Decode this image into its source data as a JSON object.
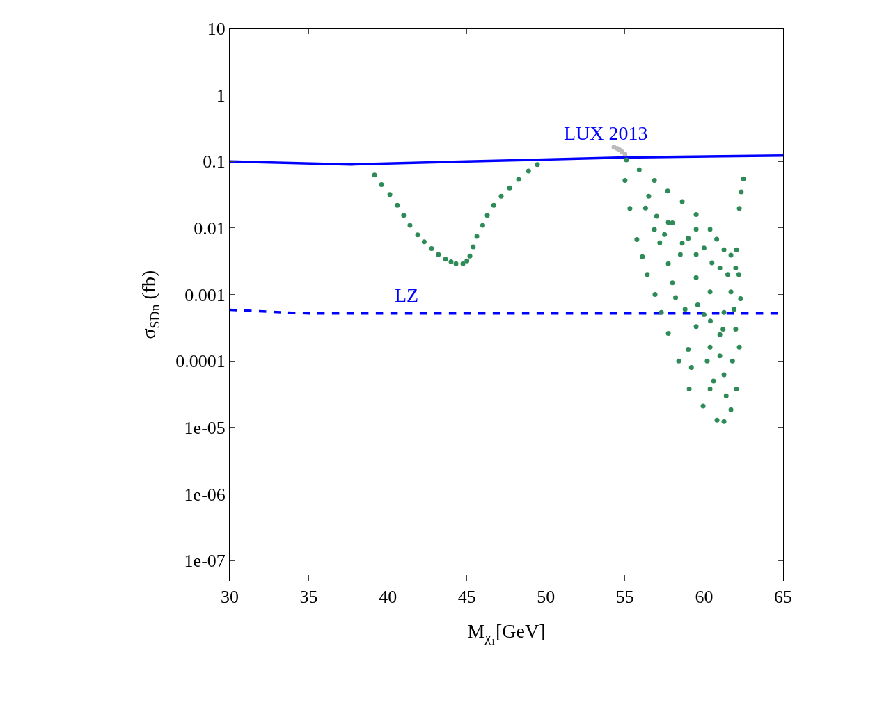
{
  "chart_data": {
    "type": "scatter",
    "xlabel": "M$_{χ₁}$[GeV]",
    "ylabel": "σ$_{SDn}$ (fb)",
    "log": "y",
    "xlim": [
      30,
      65
    ],
    "xticks": [
      30,
      35,
      40,
      45,
      50,
      55,
      60,
      65
    ],
    "ylim": [
      5e-08,
      10
    ],
    "yticks": [
      10,
      1,
      0.1,
      0.01,
      0.001,
      0.0001,
      {
        "value": 1e-05,
        "label": "1e-05"
      },
      {
        "value": 1e-06,
        "label": "1e-06"
      },
      {
        "value": 1e-07,
        "label": "1e-07"
      }
    ],
    "annotations": [
      "LUX 2013",
      "LZ"
    ],
    "series": [
      {
        "type": "line",
        "line_style": "solid",
        "color": "#0000ff",
        "x": [
          30,
          37.7,
          45,
          55,
          65
        ],
        "values": [
          0.1,
          0.09,
          0.1,
          0.115,
          0.123
        ]
      },
      {
        "type": "line",
        "line_style": "dashed",
        "color": "#0000ff",
        "x": [
          30,
          35,
          45,
          55,
          65
        ],
        "values": [
          0.00059,
          0.00052,
          0.00052,
          0.00052,
          0.00052
        ]
      },
      {
        "marker": "circle",
        "color": "#bbbbbb",
        "x": [
          54.3,
          54.5,
          54.65,
          54.8,
          55.0
        ],
        "values": [
          0.164,
          0.157,
          0.15,
          0.14,
          0.129
        ]
      },
      {
        "marker": "circle",
        "color": "#2e8b57",
        "x": [
          39.16,
          39.6,
          40.13,
          40.6,
          41.0,
          41.4,
          41.89,
          42.3,
          42.77,
          43.2,
          43.65,
          44.0,
          44.31,
          44.75,
          45.0,
          45.19,
          45.4,
          45.63,
          46.0,
          46.29,
          46.7,
          47.17,
          47.7,
          48.27,
          48.9,
          49.46,
          55.09,
          55.9,
          56.86,
          57.7,
          58.62,
          59.5,
          60.38,
          60.8,
          61.26,
          61.7,
          62.05,
          62.23,
          62.35,
          62.49,
          55.0,
          55.31,
          55.75,
          56.1,
          56.41,
          56.9,
          57.3,
          57.74,
          58.4,
          59.06,
          59.94,
          60.82,
          61.26,
          61.7,
          62.05,
          62.23,
          62.31,
          56.86,
          57.74,
          58.62,
          59.5,
          59.5,
          60.38,
          60.38,
          61.26,
          61.26,
          60.38,
          61.7,
          57.74,
          59.5,
          58.2,
          59.0,
          60.0,
          61.0,
          62.0,
          62.2,
          56.3,
          57.2,
          56.5,
          57.0,
          57.5,
          58.0,
          58.5,
          59.0,
          59.5,
          60.0,
          60.5,
          61.0,
          61.5,
          62.0,
          58.0,
          58.8,
          59.6,
          60.4,
          61.2,
          61.9,
          59.2,
          60.2,
          61.0,
          61.8,
          60.6,
          61.4
        ],
        "values": [
          0.0625,
          0.045,
          0.032,
          0.022,
          0.0155,
          0.011,
          0.0079,
          0.0062,
          0.0049,
          0.004,
          0.0034,
          0.0031,
          0.0029,
          0.0029,
          0.0032,
          0.0038,
          0.0052,
          0.0075,
          0.011,
          0.0155,
          0.022,
          0.03,
          0.04,
          0.054,
          0.072,
          0.09,
          0.106,
          0.075,
          0.052,
          0.036,
          0.025,
          0.016,
          0.0096,
          0.0068,
          0.0047,
          0.0039,
          0.0047,
          0.0197,
          0.035,
          0.055,
          0.052,
          0.0197,
          0.0067,
          0.0037,
          0.002,
          0.001,
          0.00054,
          0.00026,
          0.0001,
          3.8e-05,
          2.1e-05,
          1.29e-05,
          1.23e-05,
          1.86e-05,
          3.8e-05,
          0.000162,
          0.00087,
          0.0095,
          0.0029,
          0.0059,
          0.0018,
          0.00033,
          0.0011,
          0.000162,
          0.00054,
          6.2e-05,
          3.8e-05,
          0.0011,
          0.0122,
          0.0096,
          0.0009,
          0.00015,
          0.0005,
          0.00025,
          0.0003,
          0.002,
          0.02,
          0.006,
          0.03,
          0.015,
          0.008,
          0.012,
          0.004,
          0.007,
          0.004,
          0.005,
          0.003,
          0.0025,
          0.002,
          0.0025,
          0.0015,
          0.0006,
          0.0007,
          0.0004,
          0.0003,
          0.0006,
          8e-05,
          0.0001,
          0.00012,
          0.0001,
          5e-05,
          3e-05
        ]
      }
    ]
  }
}
